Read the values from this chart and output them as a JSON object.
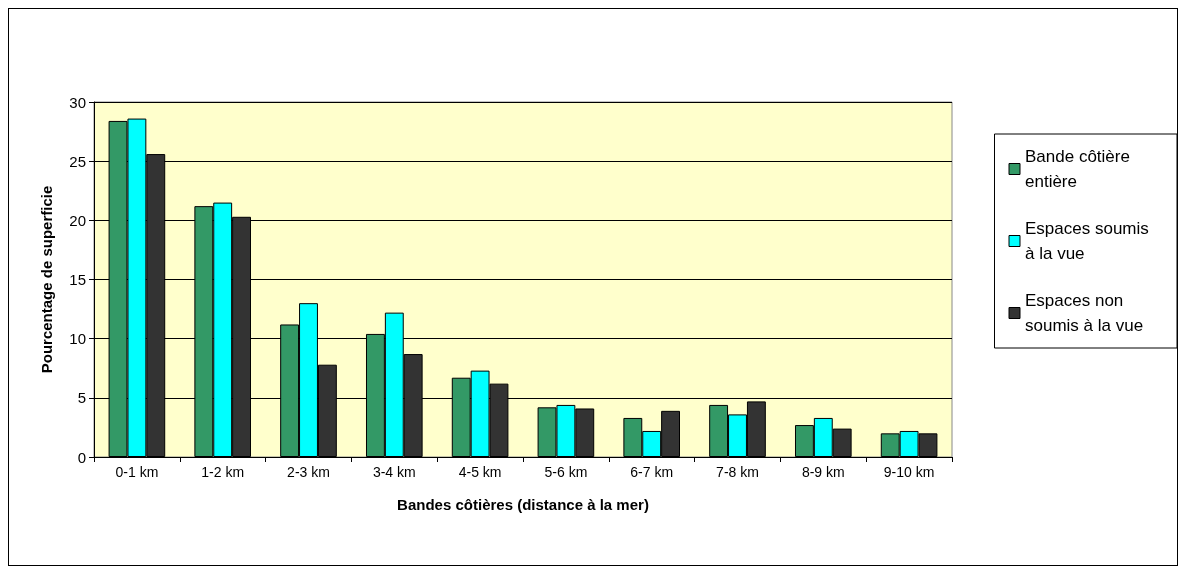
{
  "chart_data": {
    "type": "bar",
    "xlabel": "Bandes côtières (distance à la mer)",
    "ylabel": "Pourcentage de superficie",
    "categories": [
      "0-1 km",
      "1-2 km",
      "2-3 km",
      "3-4 km",
      "4-5 km",
      "5-6 km",
      "6-7 km",
      "7-8 km",
      "8-9 km",
      "9-10 km"
    ],
    "series": [
      {
        "name": "Bande côtière entière",
        "color": "#339966",
        "values": [
          28.4,
          21.2,
          11.2,
          10.4,
          6.7,
          4.2,
          3.3,
          4.4,
          2.7,
          2.0
        ]
      },
      {
        "name": "Espaces soumis à la vue",
        "color": "#00ffff",
        "values": [
          28.6,
          21.5,
          13.0,
          12.2,
          7.3,
          4.4,
          2.2,
          3.6,
          3.3,
          2.2
        ]
      },
      {
        "name": "Espaces non soumis à la vue",
        "color": "#333333",
        "values": [
          25.6,
          20.3,
          7.8,
          8.7,
          6.2,
          4.1,
          3.9,
          4.7,
          2.4,
          2.0
        ]
      }
    ],
    "ylim": [
      0,
      30
    ],
    "yticks": [
      0,
      5,
      10,
      15,
      20,
      25,
      30
    ],
    "grid": "y",
    "legend": "right"
  }
}
